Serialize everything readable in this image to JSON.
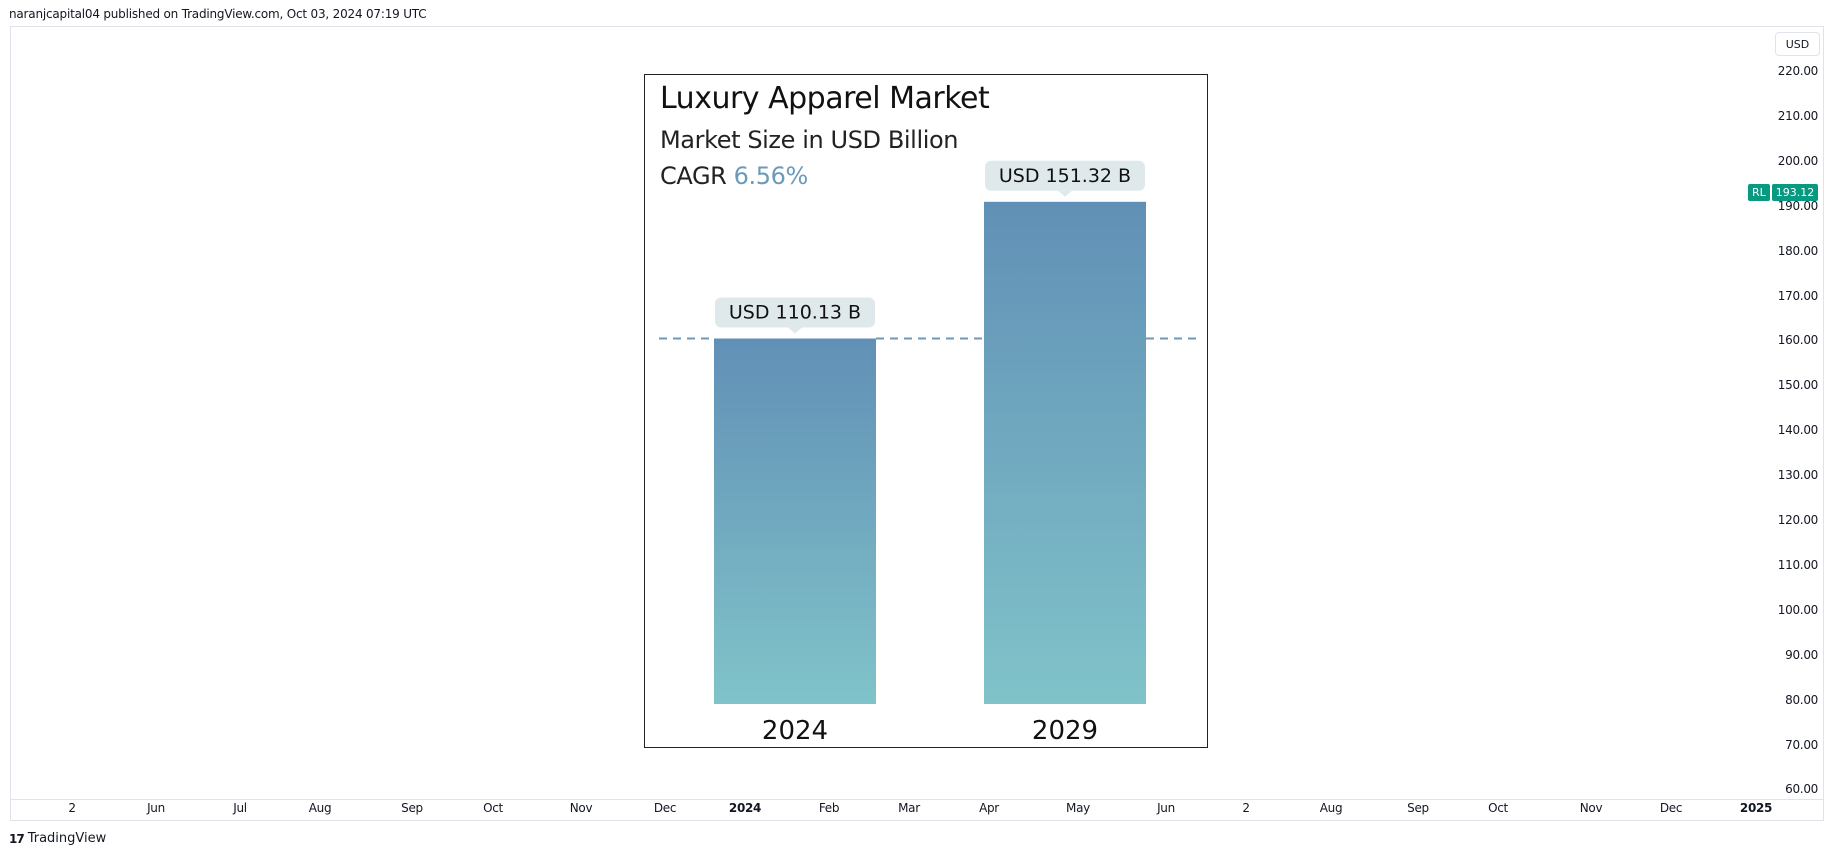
{
  "header": {
    "text": "naranjcapital04 published on TradingView.com, Oct 03, 2024 07:19 UTC"
  },
  "currency_button": "USD",
  "price_tag": {
    "symbol": "RL",
    "price": "193.12",
    "color": "#089981"
  },
  "y_axis": {
    "ticks": [
      "220.00",
      "210.00",
      "200.00",
      "190.00",
      "180.00",
      "170.00",
      "160.00",
      "150.00",
      "140.00",
      "130.00",
      "120.00",
      "110.00",
      "100.00",
      "90.00",
      "80.00",
      "70.00",
      "60.00"
    ]
  },
  "x_axis": {
    "ticks": [
      {
        "label": "2",
        "bold": false
      },
      {
        "label": "Jun",
        "bold": false
      },
      {
        "label": "Jul",
        "bold": false
      },
      {
        "label": "Aug",
        "bold": false
      },
      {
        "label": "Sep",
        "bold": false
      },
      {
        "label": "Oct",
        "bold": false
      },
      {
        "label": "Nov",
        "bold": false
      },
      {
        "label": "Dec",
        "bold": false
      },
      {
        "label": "2024",
        "bold": true
      },
      {
        "label": "Feb",
        "bold": false
      },
      {
        "label": "Mar",
        "bold": false
      },
      {
        "label": "Apr",
        "bold": false
      },
      {
        "label": "May",
        "bold": false
      },
      {
        "label": "Jun",
        "bold": false
      },
      {
        "label": "2",
        "bold": false
      },
      {
        "label": "Aug",
        "bold": false
      },
      {
        "label": "Sep",
        "bold": false
      },
      {
        "label": "Oct",
        "bold": false
      },
      {
        "label": "Nov",
        "bold": false
      },
      {
        "label": "Dec",
        "bold": false
      },
      {
        "label": "2025",
        "bold": true
      }
    ]
  },
  "footer": {
    "logo": "17",
    "brand": "TradingView"
  },
  "chart_data": {
    "type": "bar",
    "title": "Luxury Apparel Market",
    "subtitle": "Market Size in USD Billion",
    "cagr_label": "CAGR",
    "cagr_value": "6.56%",
    "categories": [
      "2024",
      "2029"
    ],
    "values": [
      110.13,
      151.32
    ],
    "data_labels": [
      "USD 110.13 B",
      "USD 151.32 B"
    ],
    "reference_line_value": 110.13,
    "ylim": [
      0,
      160
    ],
    "colors": {
      "bar_top": "#6190b6",
      "bar_bottom": "#80c3c9",
      "label_bg": "#dfe9ec",
      "dashed_line": "#6c9ab8",
      "cagr": "#6c9ab8"
    }
  }
}
